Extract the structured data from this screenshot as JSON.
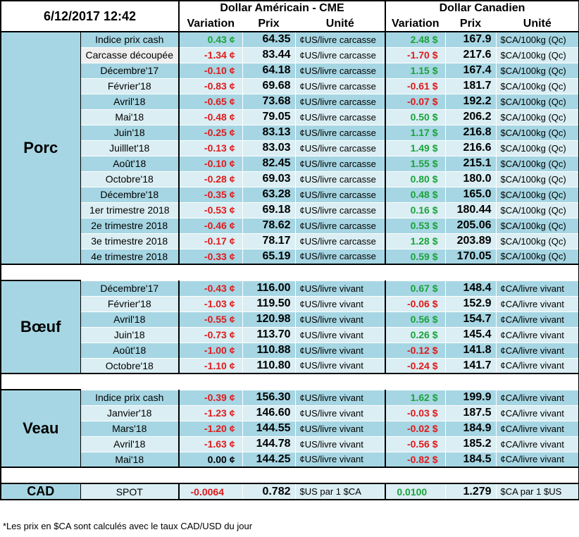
{
  "header": {
    "datetime": "6/12/2017 12:42",
    "usd_title": "Dollar Américain - CME",
    "cad_title": "Dollar Canadien",
    "col_variation": "Variation",
    "col_price": "Prix",
    "col_unit": "Unité"
  },
  "sections": [
    {
      "name": "Porc",
      "rows": [
        {
          "label": "Indice prix cash",
          "usd_var": "0.43 ¢",
          "usd_var_sign": "pos",
          "usd_price": "64.35",
          "usd_unit": "¢US/livre carcasse",
          "cad_var": "2.48 $",
          "cad_var_sign": "pos",
          "cad_price": "167.9",
          "cad_unit": "$CA/100kg (Qc)"
        },
        {
          "label": "Carcasse découpée",
          "usd_var": "-1.34 ¢",
          "usd_var_sign": "neg",
          "usd_price": "83.44",
          "usd_unit": "¢US/livre carcasse",
          "cad_var": "-1.70 $",
          "cad_var_sign": "neg",
          "cad_price": "217.6",
          "cad_unit": "$CA/100kg (Qc)"
        },
        {
          "label": "Décembre'17",
          "usd_var": "-0.10 ¢",
          "usd_var_sign": "neg",
          "usd_price": "64.18",
          "usd_unit": "¢US/livre carcasse",
          "cad_var": "1.15 $",
          "cad_var_sign": "pos",
          "cad_price": "167.4",
          "cad_unit": "$CA/100kg (Qc)"
        },
        {
          "label": "Février'18",
          "usd_var": "-0.83 ¢",
          "usd_var_sign": "neg",
          "usd_price": "69.68",
          "usd_unit": "¢US/livre carcasse",
          "cad_var": "-0.61 $",
          "cad_var_sign": "neg",
          "cad_price": "181.7",
          "cad_unit": "$CA/100kg (Qc)"
        },
        {
          "label": "Avril'18",
          "usd_var": "-0.65 ¢",
          "usd_var_sign": "neg",
          "usd_price": "73.68",
          "usd_unit": "¢US/livre carcasse",
          "cad_var": "-0.07 $",
          "cad_var_sign": "neg",
          "cad_price": "192.2",
          "cad_unit": "$CA/100kg (Qc)"
        },
        {
          "label": "Mai'18",
          "usd_var": "-0.48 ¢",
          "usd_var_sign": "neg",
          "usd_price": "79.05",
          "usd_unit": "¢US/livre carcasse",
          "cad_var": "0.50 $",
          "cad_var_sign": "pos",
          "cad_price": "206.2",
          "cad_unit": "$CA/100kg (Qc)"
        },
        {
          "label": "Juin'18",
          "usd_var": "-0.25 ¢",
          "usd_var_sign": "neg",
          "usd_price": "83.13",
          "usd_unit": "¢US/livre carcasse",
          "cad_var": "1.17 $",
          "cad_var_sign": "pos",
          "cad_price": "216.8",
          "cad_unit": "$CA/100kg (Qc)"
        },
        {
          "label": "Juilllet'18",
          "usd_var": "-0.13 ¢",
          "usd_var_sign": "neg",
          "usd_price": "83.03",
          "usd_unit": "¢US/livre carcasse",
          "cad_var": "1.49 $",
          "cad_var_sign": "pos",
          "cad_price": "216.6",
          "cad_unit": "$CA/100kg (Qc)"
        },
        {
          "label": "Août'18",
          "usd_var": "-0.10 ¢",
          "usd_var_sign": "neg",
          "usd_price": "82.45",
          "usd_unit": "¢US/livre carcasse",
          "cad_var": "1.55 $",
          "cad_var_sign": "pos",
          "cad_price": "215.1",
          "cad_unit": "$CA/100kg (Qc)"
        },
        {
          "label": "Octobre'18",
          "usd_var": "-0.28 ¢",
          "usd_var_sign": "neg",
          "usd_price": "69.03",
          "usd_unit": "¢US/livre carcasse",
          "cad_var": "0.80 $",
          "cad_var_sign": "pos",
          "cad_price": "180.0",
          "cad_unit": "$CA/100kg (Qc)"
        },
        {
          "label": "Décembre'18",
          "usd_var": "-0.35 ¢",
          "usd_var_sign": "neg",
          "usd_price": "63.28",
          "usd_unit": "¢US/livre carcasse",
          "cad_var": "0.48 $",
          "cad_var_sign": "pos",
          "cad_price": "165.0",
          "cad_unit": "$CA/100kg (Qc)"
        },
        {
          "label": "1er trimestre 2018",
          "usd_var": "-0.53 ¢",
          "usd_var_sign": "neg",
          "usd_price": "69.18",
          "usd_unit": "¢US/livre carcasse",
          "cad_var": "0.16 $",
          "cad_var_sign": "pos",
          "cad_price": "180.44",
          "cad_unit": "$CA/100kg (Qc)"
        },
        {
          "label": "2e trimestre 2018",
          "usd_var": "-0.46 ¢",
          "usd_var_sign": "neg",
          "usd_price": "78.62",
          "usd_unit": "¢US/livre carcasse",
          "cad_var": "0.53 $",
          "cad_var_sign": "pos",
          "cad_price": "205.06",
          "cad_unit": "$CA/100kg (Qc)"
        },
        {
          "label": "3e trimestre 2018",
          "usd_var": "-0.17 ¢",
          "usd_var_sign": "neg",
          "usd_price": "78.17",
          "usd_unit": "¢US/livre carcasse",
          "cad_var": "1.28 $",
          "cad_var_sign": "pos",
          "cad_price": "203.89",
          "cad_unit": "$CA/100kg (Qc)"
        },
        {
          "label": "4e trimestre 2018",
          "usd_var": "-0.33 ¢",
          "usd_var_sign": "neg",
          "usd_price": "65.19",
          "usd_unit": "¢US/livre carcasse",
          "cad_var": "0.59 $",
          "cad_var_sign": "pos",
          "cad_price": "170.05",
          "cad_unit": "$CA/100kg (Qc)"
        }
      ]
    },
    {
      "name": "Bœuf",
      "rows": [
        {
          "label": "Décembre'17",
          "usd_var": "-0.43 ¢",
          "usd_var_sign": "neg",
          "usd_price": "116.00",
          "usd_unit": "¢US/livre vivant",
          "cad_var": "0.67 $",
          "cad_var_sign": "pos",
          "cad_price": "148.4",
          "cad_unit": "¢CA/livre vivant"
        },
        {
          "label": "Février'18",
          "usd_var": "-1.03 ¢",
          "usd_var_sign": "neg",
          "usd_price": "119.50",
          "usd_unit": "¢US/livre vivant",
          "cad_var": "-0.06 $",
          "cad_var_sign": "neg",
          "cad_price": "152.9",
          "cad_unit": "¢CA/livre vivant"
        },
        {
          "label": "Avril'18",
          "usd_var": "-0.55 ¢",
          "usd_var_sign": "neg",
          "usd_price": "120.98",
          "usd_unit": "¢US/livre vivant",
          "cad_var": "0.56 $",
          "cad_var_sign": "pos",
          "cad_price": "154.7",
          "cad_unit": "¢CA/livre vivant"
        },
        {
          "label": "Juin'18",
          "usd_var": "-0.73 ¢",
          "usd_var_sign": "neg",
          "usd_price": "113.70",
          "usd_unit": "¢US/livre vivant",
          "cad_var": "0.26 $",
          "cad_var_sign": "pos",
          "cad_price": "145.4",
          "cad_unit": "¢CA/livre vivant"
        },
        {
          "label": "Août'18",
          "usd_var": "-1.00 ¢",
          "usd_var_sign": "neg",
          "usd_price": "110.88",
          "usd_unit": "¢US/livre vivant",
          "cad_var": "-0.12 $",
          "cad_var_sign": "neg",
          "cad_price": "141.8",
          "cad_unit": "¢CA/livre vivant"
        },
        {
          "label": "Octobre'18",
          "usd_var": "-1.10 ¢",
          "usd_var_sign": "neg",
          "usd_price": "110.80",
          "usd_unit": "¢US/livre vivant",
          "cad_var": "-0.24 $",
          "cad_var_sign": "neg",
          "cad_price": "141.7",
          "cad_unit": "¢CA/livre vivant"
        }
      ]
    },
    {
      "name": "Veau",
      "rows": [
        {
          "label": "Indice prix cash",
          "usd_var": "-0.39 ¢",
          "usd_var_sign": "neg",
          "usd_price": "156.30",
          "usd_unit": "¢US/livre vivant",
          "cad_var": "1.62 $",
          "cad_var_sign": "pos",
          "cad_price": "199.9",
          "cad_unit": "¢CA/livre vivant"
        },
        {
          "label": "Janvier'18",
          "usd_var": "-1.23 ¢",
          "usd_var_sign": "neg",
          "usd_price": "146.60",
          "usd_unit": "¢US/livre vivant",
          "cad_var": "-0.03 $",
          "cad_var_sign": "neg",
          "cad_price": "187.5",
          "cad_unit": "¢CA/livre vivant"
        },
        {
          "label": "Mars'18",
          "usd_var": "-1.20 ¢",
          "usd_var_sign": "neg",
          "usd_price": "144.55",
          "usd_unit": "¢US/livre vivant",
          "cad_var": "-0.02 $",
          "cad_var_sign": "neg",
          "cad_price": "184.9",
          "cad_unit": "¢CA/livre vivant"
        },
        {
          "label": "Avril'18",
          "usd_var": "-1.63 ¢",
          "usd_var_sign": "neg",
          "usd_price": "144.78",
          "usd_unit": "¢US/livre vivant",
          "cad_var": "-0.56 $",
          "cad_var_sign": "neg",
          "cad_price": "185.2",
          "cad_unit": "¢CA/livre vivant"
        },
        {
          "label": "Mai'18",
          "usd_var": "0.00 ¢",
          "usd_var_sign": "zero",
          "usd_price": "144.25",
          "usd_unit": "¢US/livre vivant",
          "cad_var": "-0.82 $",
          "cad_var_sign": "neg",
          "cad_price": "184.5",
          "cad_unit": "¢CA/livre vivant"
        }
      ]
    }
  ],
  "cad": {
    "name": "CAD",
    "label": "SPOT",
    "usd_var": "-0.0064",
    "usd_var_sign": "neg",
    "usd_price": "0.782",
    "usd_unit": "$US par 1 $CA",
    "cad_var": "0.0100",
    "cad_var_sign": "pos",
    "cad_price": "1.279",
    "cad_unit": "$CA par 1 $US"
  },
  "footnote": "*Les  prix en $CA sont calculés avec le taux CAD/USD du jour",
  "colors": {
    "header_blue": "#a6d6e3",
    "row_light": "#daeef3",
    "negative": "#e0191b",
    "positive": "#1aa33a"
  }
}
